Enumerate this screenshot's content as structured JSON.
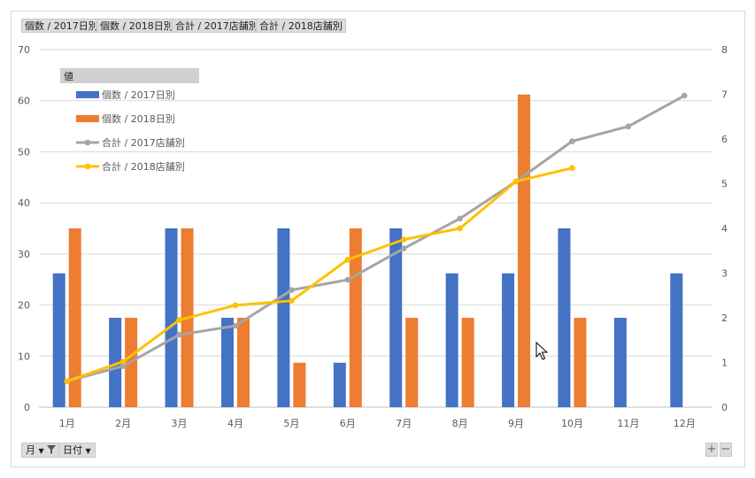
{
  "field_buttons": [
    "個数 / 2017日別",
    "個数 / 2018日別",
    "合計 / 2017店舗別",
    "合計 / 2018店舗別"
  ],
  "axis_buttons": {
    "month": "月",
    "date": "日付"
  },
  "zoom": {
    "plus": "+",
    "minus": "−"
  },
  "colors": {
    "s2017": "#4472C4",
    "s2018": "#ED7D31",
    "l2017": "#A5A5A5",
    "l2018": "#FFC000"
  },
  "chart_data": {
    "type": "bar",
    "categories": [
      "1月",
      "2月",
      "3月",
      "4月",
      "5月",
      "6月",
      "7月",
      "8月",
      "9月",
      "10月",
      "11月",
      "12月"
    ],
    "legend_title": "値",
    "legend_placement": "top-left",
    "grid": true,
    "ylim": [
      0,
      70
    ],
    "y2lim": [
      0,
      8
    ],
    "yticks": [
      "0",
      "10",
      "20",
      "30",
      "40",
      "50",
      "60",
      "70"
    ],
    "y2ticks": [
      "0",
      "1",
      "2",
      "3",
      "4",
      "5",
      "6",
      "7",
      "8"
    ],
    "series": [
      {
        "name": "個数 / 2017日別",
        "type": "bar",
        "axis": "left",
        "values": [
          26.2,
          17.5,
          35,
          17.5,
          35,
          8.7,
          35,
          26.2,
          26.2,
          35,
          17.5,
          26.2
        ]
      },
      {
        "name": "個数 / 2018日別",
        "type": "bar",
        "axis": "left",
        "values": [
          35,
          17.5,
          35,
          17.5,
          8.7,
          35,
          17.5,
          17.5,
          61.2,
          17.5,
          null,
          null
        ]
      },
      {
        "name": "合計 / 2017店舗別",
        "type": "line",
        "axis": "right",
        "values": [
          0.58,
          0.92,
          1.62,
          1.82,
          2.62,
          2.85,
          3.55,
          4.22,
          5.05,
          5.95,
          6.28,
          6.97
        ]
      },
      {
        "name": "合計 / 2018店舗別",
        "type": "line",
        "axis": "right",
        "values": [
          0.58,
          1.02,
          1.95,
          2.28,
          2.38,
          3.3,
          3.75,
          4.0,
          5.05,
          5.35,
          null,
          null
        ]
      }
    ]
  }
}
